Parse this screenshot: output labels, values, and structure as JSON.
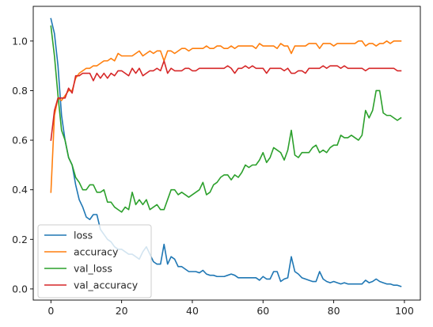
{
  "chart_data": {
    "type": "line",
    "title": "",
    "xlabel": "",
    "ylabel": "",
    "xlim": [
      -5,
      104.5
    ],
    "ylim": [
      -0.045,
      1.14
    ],
    "xticks": [
      0,
      20,
      40,
      60,
      80,
      100
    ],
    "yticks": [
      0.0,
      0.2,
      0.4,
      0.6,
      0.8,
      1.0
    ],
    "xtick_labels": [
      "0",
      "20",
      "40",
      "60",
      "80",
      "100"
    ],
    "ytick_labels": [
      "0.0",
      "0.2",
      "0.4",
      "0.6",
      "0.8",
      "1.0"
    ],
    "grid": false,
    "legend_position": "lower-left",
    "series": [
      {
        "name": "loss",
        "color": "#1f77b4",
        "x": [
          0,
          1,
          2,
          3,
          4,
          5,
          6,
          7,
          8,
          9,
          10,
          11,
          12,
          13,
          14,
          15,
          16,
          17,
          18,
          19,
          20,
          21,
          22,
          23,
          24,
          25,
          26,
          27,
          28,
          29,
          30,
          31,
          32,
          33,
          34,
          35,
          36,
          37,
          38,
          39,
          40,
          41,
          42,
          43,
          44,
          45,
          46,
          47,
          48,
          49,
          50,
          51,
          52,
          53,
          54,
          55,
          56,
          57,
          58,
          59,
          60,
          61,
          62,
          63,
          64,
          65,
          66,
          67,
          68,
          69,
          70,
          71,
          72,
          73,
          74,
          75,
          76,
          77,
          78,
          79,
          80,
          81,
          82,
          83,
          84,
          85,
          86,
          87,
          88,
          89,
          90,
          91,
          92,
          93,
          94,
          95,
          96,
          97,
          98,
          99
        ],
        "y": [
          1.09,
          1.03,
          0.9,
          0.7,
          0.6,
          0.53,
          0.5,
          0.42,
          0.36,
          0.33,
          0.29,
          0.28,
          0.3,
          0.3,
          0.24,
          0.22,
          0.2,
          0.19,
          0.17,
          0.16,
          0.16,
          0.15,
          0.14,
          0.14,
          0.13,
          0.12,
          0.15,
          0.17,
          0.14,
          0.11,
          0.1,
          0.1,
          0.18,
          0.1,
          0.13,
          0.12,
          0.09,
          0.09,
          0.08,
          0.07,
          0.07,
          0.07,
          0.065,
          0.075,
          0.06,
          0.055,
          0.055,
          0.05,
          0.05,
          0.05,
          0.055,
          0.06,
          0.055,
          0.045,
          0.045,
          0.045,
          0.045,
          0.045,
          0.045,
          0.035,
          0.05,
          0.04,
          0.04,
          0.07,
          0.07,
          0.03,
          0.04,
          0.045,
          0.13,
          0.07,
          0.06,
          0.045,
          0.04,
          0.035,
          0.03,
          0.03,
          0.07,
          0.04,
          0.03,
          0.025,
          0.03,
          0.025,
          0.02,
          0.025,
          0.02,
          0.02,
          0.02,
          0.02,
          0.02,
          0.035,
          0.025,
          0.03,
          0.04,
          0.03,
          0.025,
          0.02,
          0.02,
          0.015,
          0.015,
          0.01
        ]
      },
      {
        "name": "accuracy",
        "color": "#ff7f0e",
        "x": [
          0,
          1,
          2,
          3,
          4,
          5,
          6,
          7,
          8,
          9,
          10,
          11,
          12,
          13,
          14,
          15,
          16,
          17,
          18,
          19,
          20,
          21,
          22,
          23,
          24,
          25,
          26,
          27,
          28,
          29,
          30,
          31,
          32,
          33,
          34,
          35,
          36,
          37,
          38,
          39,
          40,
          41,
          42,
          43,
          44,
          45,
          46,
          47,
          48,
          49,
          50,
          51,
          52,
          53,
          54,
          55,
          56,
          57,
          58,
          59,
          60,
          61,
          62,
          63,
          64,
          65,
          66,
          67,
          68,
          69,
          70,
          71,
          72,
          73,
          74,
          75,
          76,
          77,
          78,
          79,
          80,
          81,
          82,
          83,
          84,
          85,
          86,
          87,
          88,
          89,
          90,
          91,
          92,
          93,
          94,
          95,
          96,
          97,
          98,
          99
        ],
        "y": [
          0.39,
          0.7,
          0.77,
          0.76,
          0.78,
          0.8,
          0.8,
          0.85,
          0.87,
          0.88,
          0.89,
          0.89,
          0.9,
          0.9,
          0.91,
          0.92,
          0.92,
          0.93,
          0.92,
          0.95,
          0.94,
          0.94,
          0.94,
          0.94,
          0.95,
          0.96,
          0.94,
          0.95,
          0.96,
          0.95,
          0.96,
          0.96,
          0.92,
          0.96,
          0.96,
          0.95,
          0.96,
          0.97,
          0.97,
          0.96,
          0.97,
          0.97,
          0.97,
          0.97,
          0.98,
          0.97,
          0.97,
          0.98,
          0.98,
          0.97,
          0.97,
          0.98,
          0.97,
          0.98,
          0.98,
          0.98,
          0.98,
          0.98,
          0.97,
          0.99,
          0.98,
          0.98,
          0.98,
          0.98,
          0.97,
          0.99,
          0.98,
          0.98,
          0.95,
          0.98,
          0.98,
          0.98,
          0.98,
          0.99,
          0.99,
          0.99,
          0.97,
          0.99,
          0.99,
          0.99,
          0.98,
          0.99,
          0.99,
          0.99,
          0.99,
          0.99,
          0.99,
          1.0,
          1.0,
          0.98,
          0.99,
          0.99,
          0.98,
          0.99,
          0.99,
          1.0,
          0.99,
          1.0,
          1.0,
          1.0
        ]
      },
      {
        "name": "val_loss",
        "color": "#2ca02c",
        "x": [
          0,
          1,
          2,
          3,
          4,
          5,
          6,
          7,
          8,
          9,
          10,
          11,
          12,
          13,
          14,
          15,
          16,
          17,
          18,
          19,
          20,
          21,
          22,
          23,
          24,
          25,
          26,
          27,
          28,
          29,
          30,
          31,
          32,
          33,
          34,
          35,
          36,
          37,
          38,
          39,
          40,
          41,
          42,
          43,
          44,
          45,
          46,
          47,
          48,
          49,
          50,
          51,
          52,
          53,
          54,
          55,
          56,
          57,
          58,
          59,
          60,
          61,
          62,
          63,
          64,
          65,
          66,
          67,
          68,
          69,
          70,
          71,
          72,
          73,
          74,
          75,
          76,
          77,
          78,
          79,
          80,
          81,
          82,
          83,
          84,
          85,
          86,
          87,
          88,
          89,
          90,
          91,
          92,
          93,
          94,
          95,
          96,
          97,
          98,
          99
        ],
        "y": [
          1.06,
          0.94,
          0.78,
          0.64,
          0.6,
          0.53,
          0.5,
          0.45,
          0.43,
          0.4,
          0.4,
          0.42,
          0.42,
          0.39,
          0.39,
          0.4,
          0.35,
          0.35,
          0.33,
          0.32,
          0.31,
          0.33,
          0.32,
          0.39,
          0.34,
          0.36,
          0.34,
          0.36,
          0.32,
          0.33,
          0.34,
          0.32,
          0.32,
          0.36,
          0.4,
          0.4,
          0.38,
          0.39,
          0.38,
          0.37,
          0.38,
          0.39,
          0.4,
          0.43,
          0.38,
          0.39,
          0.42,
          0.43,
          0.45,
          0.46,
          0.46,
          0.44,
          0.46,
          0.45,
          0.47,
          0.5,
          0.49,
          0.5,
          0.5,
          0.52,
          0.55,
          0.51,
          0.53,
          0.57,
          0.56,
          0.55,
          0.52,
          0.56,
          0.64,
          0.54,
          0.53,
          0.55,
          0.55,
          0.55,
          0.57,
          0.58,
          0.55,
          0.56,
          0.55,
          0.57,
          0.58,
          0.58,
          0.62,
          0.61,
          0.61,
          0.62,
          0.61,
          0.6,
          0.62,
          0.72,
          0.69,
          0.72,
          0.8,
          0.8,
          0.71,
          0.7,
          0.7,
          0.69,
          0.68,
          0.69
        ]
      },
      {
        "name": "val_accuracy",
        "color": "#d62728",
        "x": [
          0,
          1,
          2,
          3,
          4,
          5,
          6,
          7,
          8,
          9,
          10,
          11,
          12,
          13,
          14,
          15,
          16,
          17,
          18,
          19,
          20,
          21,
          22,
          23,
          24,
          25,
          26,
          27,
          28,
          29,
          30,
          31,
          32,
          33,
          34,
          35,
          36,
          37,
          38,
          39,
          40,
          41,
          42,
          43,
          44,
          45,
          46,
          47,
          48,
          49,
          50,
          51,
          52,
          53,
          54,
          55,
          56,
          57,
          58,
          59,
          60,
          61,
          62,
          63,
          64,
          65,
          66,
          67,
          68,
          69,
          70,
          71,
          72,
          73,
          74,
          75,
          76,
          77,
          78,
          79,
          80,
          81,
          82,
          83,
          84,
          85,
          86,
          87,
          88,
          89,
          90,
          91,
          92,
          93,
          94,
          95,
          96,
          97,
          98,
          99
        ],
        "y": [
          0.6,
          0.72,
          0.77,
          0.77,
          0.77,
          0.81,
          0.79,
          0.86,
          0.86,
          0.87,
          0.87,
          0.87,
          0.84,
          0.87,
          0.85,
          0.87,
          0.85,
          0.87,
          0.86,
          0.88,
          0.88,
          0.87,
          0.86,
          0.89,
          0.87,
          0.89,
          0.86,
          0.87,
          0.88,
          0.88,
          0.89,
          0.88,
          0.92,
          0.87,
          0.89,
          0.88,
          0.88,
          0.88,
          0.89,
          0.89,
          0.88,
          0.88,
          0.89,
          0.89,
          0.89,
          0.89,
          0.89,
          0.89,
          0.89,
          0.89,
          0.9,
          0.89,
          0.87,
          0.89,
          0.89,
          0.9,
          0.89,
          0.9,
          0.89,
          0.89,
          0.89,
          0.87,
          0.89,
          0.89,
          0.89,
          0.89,
          0.88,
          0.89,
          0.87,
          0.87,
          0.88,
          0.88,
          0.87,
          0.89,
          0.89,
          0.89,
          0.89,
          0.9,
          0.89,
          0.9,
          0.9,
          0.9,
          0.89,
          0.9,
          0.89,
          0.89,
          0.89,
          0.89,
          0.89,
          0.88,
          0.89,
          0.89,
          0.89,
          0.89,
          0.89,
          0.89,
          0.89,
          0.89,
          0.88,
          0.88
        ]
      }
    ]
  }
}
